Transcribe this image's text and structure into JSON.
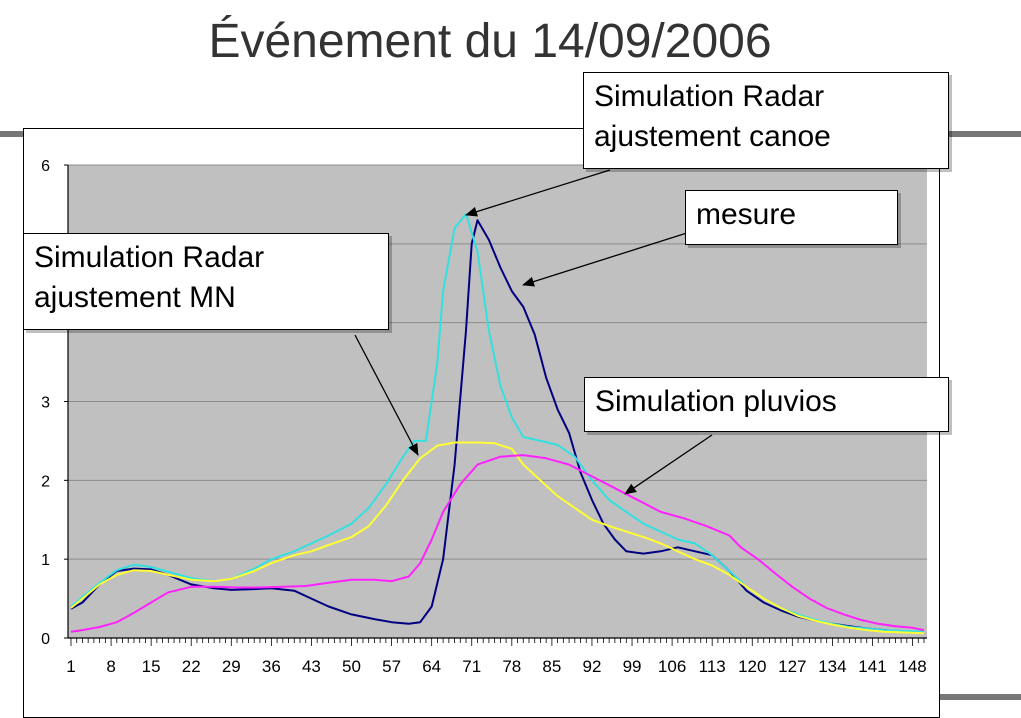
{
  "page": {
    "title": "Événement du 14/09/2006"
  },
  "annotations": [
    {
      "id": "radar-canoe",
      "lines": [
        "Simulation Radar",
        "ajustement canoe"
      ]
    },
    {
      "id": "mesure",
      "lines": [
        "mesure"
      ]
    },
    {
      "id": "radar-mn",
      "lines": [
        "Simulation Radar",
        "ajustement MN"
      ]
    },
    {
      "id": "pluvios",
      "lines": [
        "Simulation pluvios"
      ]
    }
  ],
  "colors": {
    "plot_bg": "#c0c0c0",
    "grid": "#8c8c8c",
    "mesure": "#000080",
    "radar_canoe": "#33e0e0",
    "radar_mn": "#ffff33",
    "pluvios": "#ff22ff"
  },
  "chart_data": {
    "type": "line",
    "title": "Événement du 14/09/2006",
    "xlabel": "",
    "ylabel": "",
    "xlim": [
      1,
      150
    ],
    "ylim": [
      0,
      6
    ],
    "x_tick_labels": [
      "1",
      "8",
      "15",
      "22",
      "29",
      "36",
      "43",
      "50",
      "57",
      "64",
      "71",
      "78",
      "85",
      "92",
      "99",
      "106",
      "113",
      "120",
      "127",
      "134",
      "141",
      "148"
    ],
    "y_tick_labels": [
      "0",
      "1",
      "2",
      "3",
      "6"
    ],
    "grid": true,
    "series": [
      {
        "key": "mesure",
        "points": [
          [
            1,
            0.37
          ],
          [
            3,
            0.45
          ],
          [
            6,
            0.68
          ],
          [
            9,
            0.85
          ],
          [
            12,
            0.88
          ],
          [
            15,
            0.87
          ],
          [
            18,
            0.8
          ],
          [
            22,
            0.68
          ],
          [
            26,
            0.63
          ],
          [
            29,
            0.61
          ],
          [
            33,
            0.62
          ],
          [
            36,
            0.63
          ],
          [
            40,
            0.6
          ],
          [
            43,
            0.5
          ],
          [
            46,
            0.4
          ],
          [
            50,
            0.3
          ],
          [
            54,
            0.24
          ],
          [
            57,
            0.2
          ],
          [
            60,
            0.18
          ],
          [
            62,
            0.2
          ],
          [
            64,
            0.4
          ],
          [
            66,
            1.0
          ],
          [
            68,
            2.2
          ],
          [
            70,
            3.9
          ],
          [
            71,
            5.0
          ],
          [
            72,
            5.3
          ],
          [
            74,
            5.05
          ],
          [
            76,
            4.7
          ],
          [
            78,
            4.4
          ],
          [
            80,
            4.2
          ],
          [
            82,
            3.85
          ],
          [
            84,
            3.3
          ],
          [
            86,
            2.9
          ],
          [
            88,
            2.6
          ],
          [
            90,
            2.1
          ],
          [
            92,
            1.75
          ],
          [
            94,
            1.45
          ],
          [
            96,
            1.25
          ],
          [
            98,
            1.1
          ],
          [
            101,
            1.07
          ],
          [
            104,
            1.1
          ],
          [
            107,
            1.15
          ],
          [
            110,
            1.1
          ],
          [
            113,
            1.05
          ],
          [
            116,
            0.85
          ],
          [
            119,
            0.6
          ],
          [
            122,
            0.45
          ],
          [
            125,
            0.35
          ],
          [
            128,
            0.27
          ],
          [
            131,
            0.22
          ],
          [
            134,
            0.18
          ],
          [
            137,
            0.15
          ],
          [
            140,
            0.12
          ],
          [
            143,
            0.1
          ],
          [
            146,
            0.08
          ],
          [
            150,
            0.07
          ]
        ]
      },
      {
        "key": "radar_canoe",
        "points": [
          [
            1,
            0.4
          ],
          [
            3,
            0.52
          ],
          [
            6,
            0.7
          ],
          [
            9,
            0.86
          ],
          [
            12,
            0.93
          ],
          [
            15,
            0.9
          ],
          [
            18,
            0.84
          ],
          [
            22,
            0.76
          ],
          [
            26,
            0.72
          ],
          [
            29,
            0.75
          ],
          [
            33,
            0.88
          ],
          [
            36,
            1.0
          ],
          [
            40,
            1.1
          ],
          [
            43,
            1.2
          ],
          [
            46,
            1.3
          ],
          [
            50,
            1.45
          ],
          [
            53,
            1.65
          ],
          [
            56,
            1.95
          ],
          [
            59,
            2.3
          ],
          [
            61,
            2.5
          ],
          [
            63,
            2.5
          ],
          [
            65,
            3.5
          ],
          [
            66,
            4.4
          ],
          [
            68,
            5.2
          ],
          [
            70,
            5.38
          ],
          [
            72,
            4.9
          ],
          [
            74,
            3.9
          ],
          [
            76,
            3.2
          ],
          [
            78,
            2.8
          ],
          [
            80,
            2.55
          ],
          [
            83,
            2.5
          ],
          [
            86,
            2.45
          ],
          [
            89,
            2.3
          ],
          [
            92,
            2.0
          ],
          [
            95,
            1.75
          ],
          [
            98,
            1.6
          ],
          [
            101,
            1.45
          ],
          [
            104,
            1.35
          ],
          [
            107,
            1.25
          ],
          [
            110,
            1.2
          ],
          [
            113,
            1.05
          ],
          [
            116,
            0.85
          ],
          [
            119,
            0.65
          ],
          [
            122,
            0.5
          ],
          [
            125,
            0.38
          ],
          [
            128,
            0.3
          ],
          [
            131,
            0.23
          ],
          [
            134,
            0.18
          ],
          [
            137,
            0.14
          ],
          [
            140,
            0.12
          ],
          [
            143,
            0.1
          ],
          [
            150,
            0.08
          ]
        ]
      },
      {
        "key": "radar_mn",
        "points": [
          [
            1,
            0.38
          ],
          [
            3,
            0.5
          ],
          [
            6,
            0.68
          ],
          [
            9,
            0.8
          ],
          [
            12,
            0.86
          ],
          [
            15,
            0.85
          ],
          [
            18,
            0.8
          ],
          [
            22,
            0.74
          ],
          [
            26,
            0.72
          ],
          [
            29,
            0.75
          ],
          [
            33,
            0.85
          ],
          [
            36,
            0.95
          ],
          [
            40,
            1.05
          ],
          [
            43,
            1.1
          ],
          [
            46,
            1.18
          ],
          [
            50,
            1.28
          ],
          [
            53,
            1.42
          ],
          [
            56,
            1.68
          ],
          [
            59,
            2.0
          ],
          [
            62,
            2.28
          ],
          [
            65,
            2.44
          ],
          [
            68,
            2.48
          ],
          [
            72,
            2.48
          ],
          [
            75,
            2.47
          ],
          [
            78,
            2.4
          ],
          [
            80,
            2.2
          ],
          [
            83,
            2.0
          ],
          [
            86,
            1.8
          ],
          [
            89,
            1.65
          ],
          [
            92,
            1.5
          ],
          [
            95,
            1.42
          ],
          [
            98,
            1.35
          ],
          [
            101,
            1.28
          ],
          [
            104,
            1.2
          ],
          [
            107,
            1.1
          ],
          [
            110,
            1.0
          ],
          [
            113,
            0.92
          ],
          [
            116,
            0.8
          ],
          [
            119,
            0.65
          ],
          [
            122,
            0.5
          ],
          [
            125,
            0.38
          ],
          [
            128,
            0.28
          ],
          [
            131,
            0.22
          ],
          [
            134,
            0.17
          ],
          [
            137,
            0.13
          ],
          [
            140,
            0.1
          ],
          [
            143,
            0.08
          ],
          [
            150,
            0.06
          ]
        ]
      },
      {
        "key": "pluvios",
        "points": [
          [
            1,
            0.08
          ],
          [
            3,
            0.1
          ],
          [
            6,
            0.14
          ],
          [
            9,
            0.2
          ],
          [
            12,
            0.32
          ],
          [
            15,
            0.45
          ],
          [
            18,
            0.58
          ],
          [
            22,
            0.65
          ],
          [
            26,
            0.65
          ],
          [
            30,
            0.64
          ],
          [
            34,
            0.64
          ],
          [
            38,
            0.65
          ],
          [
            42,
            0.66
          ],
          [
            46,
            0.7
          ],
          [
            50,
            0.74
          ],
          [
            54,
            0.74
          ],
          [
            57,
            0.72
          ],
          [
            60,
            0.78
          ],
          [
            62,
            0.95
          ],
          [
            64,
            1.25
          ],
          [
            66,
            1.6
          ],
          [
            69,
            1.95
          ],
          [
            72,
            2.2
          ],
          [
            76,
            2.3
          ],
          [
            80,
            2.32
          ],
          [
            84,
            2.28
          ],
          [
            88,
            2.2
          ],
          [
            92,
            2.05
          ],
          [
            96,
            1.9
          ],
          [
            100,
            1.75
          ],
          [
            104,
            1.6
          ],
          [
            108,
            1.52
          ],
          [
            112,
            1.42
          ],
          [
            116,
            1.3
          ],
          [
            118,
            1.15
          ],
          [
            121,
            1.0
          ],
          [
            124,
            0.82
          ],
          [
            127,
            0.65
          ],
          [
            130,
            0.5
          ],
          [
            133,
            0.38
          ],
          [
            136,
            0.3
          ],
          [
            139,
            0.23
          ],
          [
            142,
            0.18
          ],
          [
            145,
            0.15
          ],
          [
            148,
            0.13
          ],
          [
            150,
            0.1
          ]
        ]
      }
    ]
  }
}
